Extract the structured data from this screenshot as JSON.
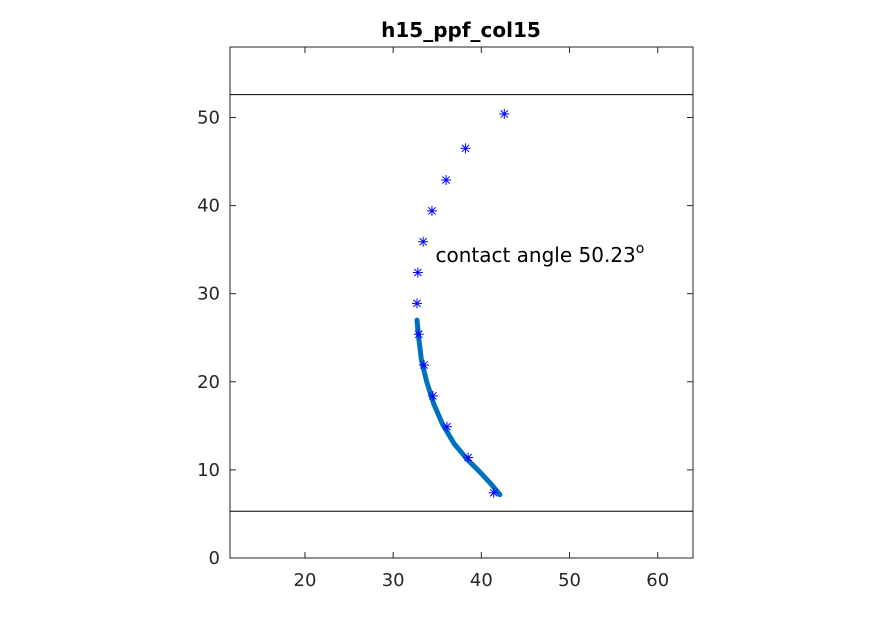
{
  "chart_data": {
    "type": "scatter",
    "title": "h15_ppf_col15",
    "xlabel": "",
    "ylabel": "",
    "xlim": [
      11.5,
      64
    ],
    "ylim": [
      0,
      58
    ],
    "xticks": [
      20,
      30,
      40,
      50,
      60
    ],
    "yticks": [
      0,
      10,
      20,
      30,
      40,
      50
    ],
    "grid": false,
    "legend": "none",
    "annotation": {
      "text": "contact angle 50.23",
      "superscript": "o",
      "x": 34.8,
      "y": 33.6
    },
    "horizontal_lines": [
      {
        "y": 52.6,
        "color": "#000000"
      },
      {
        "y": 5.3,
        "color": "#000000"
      }
    ],
    "series": [
      {
        "marker": "asterisk",
        "color": "#0000ff",
        "x": [
          42.6,
          38.2,
          36.0,
          34.4,
          33.4,
          32.8,
          32.7,
          32.9,
          33.5,
          34.5,
          36.1,
          38.5,
          41.4
        ],
        "y": [
          50.4,
          46.5,
          42.9,
          39.4,
          35.9,
          32.4,
          28.9,
          25.4,
          21.9,
          18.4,
          14.9,
          11.4,
          7.4
        ]
      },
      {
        "type": "line",
        "color": "#0072bd",
        "x": [
          32.7,
          32.9,
          33.2,
          33.8,
          34.6,
          35.6,
          36.9,
          38.4,
          39.8,
          41.1,
          42.1
        ],
        "y": [
          27.0,
          25.0,
          22.5,
          20.0,
          17.5,
          15.2,
          13.0,
          11.2,
          9.8,
          8.4,
          7.2
        ]
      }
    ]
  }
}
